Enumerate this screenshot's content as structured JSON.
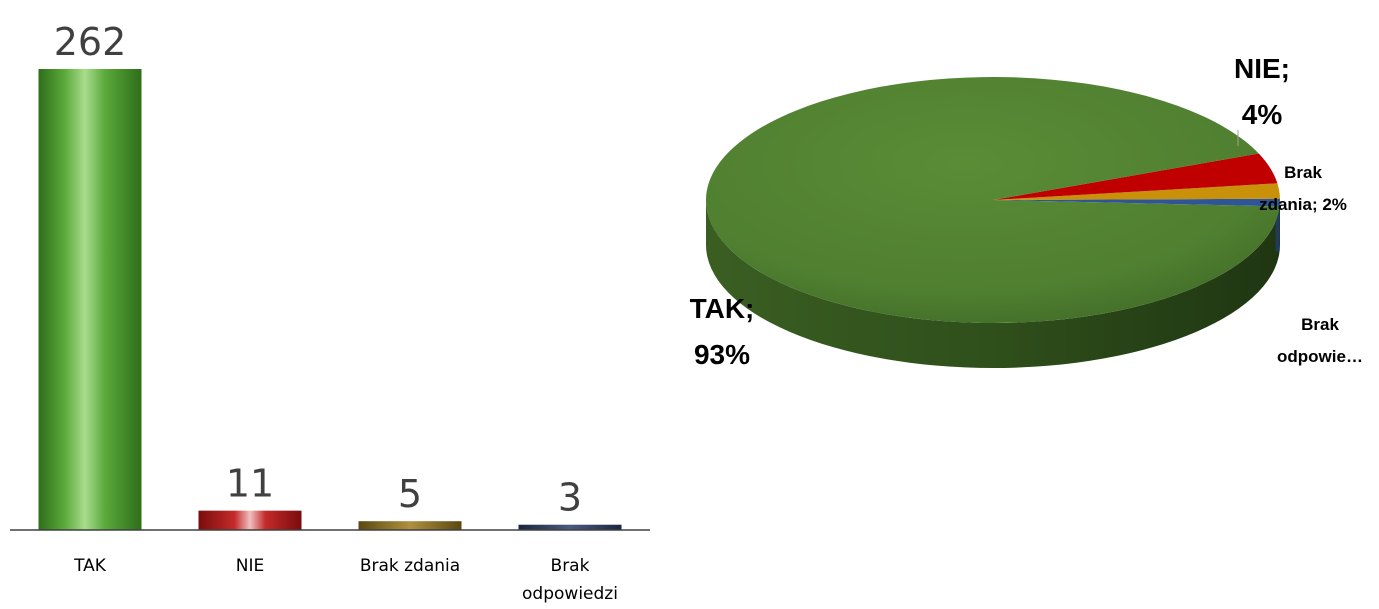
{
  "chart_data": [
    {
      "type": "bar",
      "categories": [
        "TAK",
        "NIE",
        "Brak zdania",
        "Brak odpowiedzi"
      ],
      "values": [
        262,
        11,
        5,
        3
      ],
      "data_labels": [
        "262",
        "11",
        "5",
        "3"
      ],
      "colors": [
        "#4e9a2f",
        "#b01818",
        "#8a7020",
        "#2a3a5c"
      ],
      "title": "",
      "xlabel": "",
      "ylabel": "",
      "ylim": [
        0,
        262
      ],
      "grid": false,
      "legend": "none"
    },
    {
      "type": "pie",
      "categories": [
        "TAK",
        "NIE",
        "Brak zdania",
        "Brak odpowiedzi"
      ],
      "values": [
        93,
        4,
        2,
        1
      ],
      "labels": [
        "TAK;",
        "93%",
        "NIE;",
        "4%",
        "Brak",
        "zdania; 2%",
        "Brak",
        "odpowie…"
      ],
      "colors": [
        "#548235",
        "#c00000",
        "#c9900a",
        "#2e5597"
      ],
      "style": "3d",
      "legend": "none"
    }
  ]
}
